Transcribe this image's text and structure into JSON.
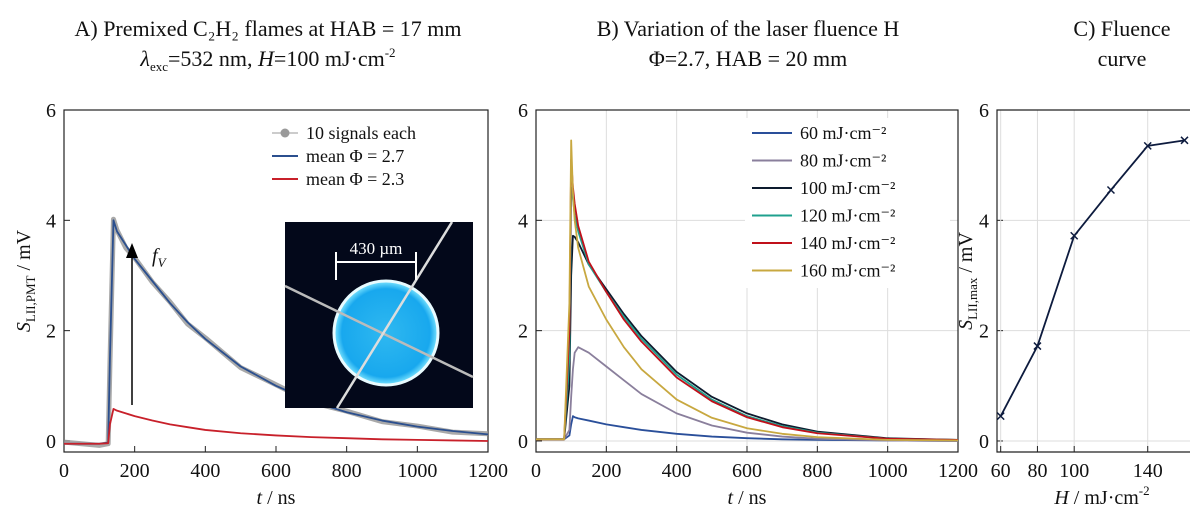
{
  "chart_data": [
    {
      "type": "line",
      "title": "A) Premixed C₂H₂ flames at HAB = 17 mm",
      "subtitle": [
        "λ",
        "exc",
        "=532 nm,  ",
        "H",
        "=100 mJ·cm",
        "-2"
      ],
      "xlabel": [
        "t",
        " / ns"
      ],
      "ylabel": [
        "S",
        "LII,PMT",
        " / mV"
      ],
      "x": [
        0,
        100,
        125,
        130,
        140,
        150,
        175,
        200,
        250,
        300,
        350,
        400,
        500,
        600,
        700,
        800,
        900,
        1000,
        1100,
        1200
      ],
      "xlim": [
        0,
        1200
      ],
      "ylim": [
        -0.2,
        6
      ],
      "xticks": [
        0,
        200,
        400,
        600,
        800,
        1000,
        1200
      ],
      "yticks": [
        0,
        2,
        4,
        6
      ],
      "grid": false,
      "legend": "upper right",
      "series": [
        {
          "name": "10 signals each",
          "color": "#9a9a9a",
          "values": [
            -0.02,
            -0.08,
            -0.05,
            1.4,
            4.02,
            3.82,
            3.5,
            3.32,
            2.88,
            2.52,
            2.12,
            1.87,
            1.33,
            1.02,
            0.7,
            0.54,
            0.35,
            0.27,
            0.16,
            0.13
          ]
        },
        {
          "name": "mean Φ = 2.7",
          "color": "#2b4f8e",
          "values": [
            -0.05,
            -0.05,
            -0.03,
            1.5,
            4.0,
            3.8,
            3.55,
            3.3,
            2.9,
            2.5,
            2.15,
            1.85,
            1.35,
            1.0,
            0.72,
            0.52,
            0.37,
            0.26,
            0.18,
            0.12
          ]
        },
        {
          "name": "mean Φ = 2.3",
          "color": "#c8202a",
          "values": [
            -0.05,
            -0.05,
            -0.04,
            0.3,
            0.58,
            0.55,
            0.5,
            0.45,
            0.37,
            0.3,
            0.25,
            0.2,
            0.14,
            0.1,
            0.07,
            0.05,
            0.03,
            0.02,
            0.01,
            0.0
          ]
        }
      ],
      "annotations": {
        "arrow_label": [
          "f",
          "V"
        ],
        "inset_label": "430 µm"
      }
    },
    {
      "type": "line",
      "title": "B) Variation of the laser fluence H",
      "subtitle": "Φ=2.7, HAB = 20 mm",
      "xlabel": [
        "t",
        " / ns"
      ],
      "x": [
        0,
        80,
        95,
        100,
        105,
        110,
        120,
        150,
        200,
        250,
        300,
        400,
        500,
        600,
        700,
        800,
        1000,
        1200
      ],
      "xlim": [
        0,
        1200
      ],
      "ylim": [
        -0.2,
        6
      ],
      "xticks": [
        0,
        200,
        400,
        600,
        800,
        1000,
        1200
      ],
      "yticks": [
        0,
        2,
        4,
        6
      ],
      "grid": true,
      "legend": "upper right",
      "series": [
        {
          "name": "60 mJ·cm⁻²",
          "color": "#2a4f9a",
          "values": [
            0.03,
            0.03,
            0.1,
            0.3,
            0.45,
            0.43,
            0.41,
            0.37,
            0.3,
            0.25,
            0.2,
            0.13,
            0.08,
            0.05,
            0.03,
            0.02,
            0.01,
            0.0
          ]
        },
        {
          "name": "80 mJ·cm⁻²",
          "color": "#8a7f9c",
          "values": [
            0.03,
            0.03,
            0.2,
            0.8,
            1.3,
            1.6,
            1.7,
            1.6,
            1.35,
            1.1,
            0.85,
            0.5,
            0.28,
            0.15,
            0.08,
            0.04,
            0.01,
            0.0
          ]
        },
        {
          "name": "100 mJ·cm⁻²",
          "color": "#0d1b2e",
          "values": [
            0.03,
            0.03,
            1.0,
            3.0,
            3.72,
            3.7,
            3.6,
            3.2,
            2.75,
            2.3,
            1.9,
            1.25,
            0.8,
            0.5,
            0.3,
            0.17,
            0.05,
            0.02
          ]
        },
        {
          "name": "120 mJ·cm⁻²",
          "color": "#1fa08e",
          "values": [
            0.03,
            0.03,
            1.5,
            4.6,
            4.4,
            4.1,
            3.8,
            3.2,
            2.7,
            2.25,
            1.85,
            1.2,
            0.75,
            0.45,
            0.27,
            0.15,
            0.04,
            0.02
          ]
        },
        {
          "name": "140 mJ·cm⁻²",
          "color": "#c0101a",
          "values": [
            0.03,
            0.03,
            2.0,
            5.1,
            4.6,
            4.3,
            3.9,
            3.25,
            2.7,
            2.2,
            1.8,
            1.15,
            0.72,
            0.43,
            0.25,
            0.14,
            0.04,
            0.02
          ]
        },
        {
          "name": "160 mJ·cm⁻²",
          "color": "#c8a840",
          "values": [
            0.03,
            0.03,
            2.5,
            5.45,
            4.5,
            4.0,
            3.5,
            2.8,
            2.2,
            1.7,
            1.3,
            0.75,
            0.42,
            0.23,
            0.13,
            0.07,
            0.02,
            0.01
          ]
        }
      ]
    },
    {
      "type": "line",
      "title": "C) Fluence",
      "subtitle": "curve",
      "xlabel": [
        "H",
        " / mJ·cm",
        "-2"
      ],
      "ylabel": [
        "S",
        "LII,max",
        " / mV"
      ],
      "x": [
        60,
        80,
        100,
        120,
        140,
        160
      ],
      "xlim": [
        58,
        163
      ],
      "ylim": [
        -0.2,
        6
      ],
      "xticks": [
        60,
        80,
        100,
        140
      ],
      "yticks": [
        0,
        2,
        4,
        6
      ],
      "grid": true,
      "marker": "x",
      "series": [
        {
          "color": "#0d1b3e",
          "values": [
            0.45,
            1.72,
            3.72,
            4.55,
            5.35,
            5.45
          ]
        }
      ]
    }
  ]
}
